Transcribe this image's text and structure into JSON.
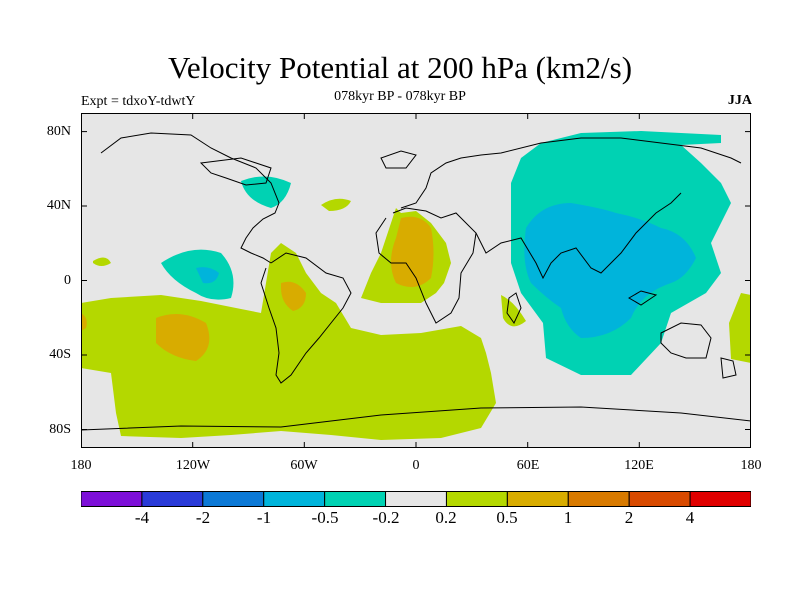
{
  "title": "Velocity Potential at 200 hPa (km2/s)",
  "subtitle": "078kyr BP - 078kyr BP",
  "experiment": "Expt = tdxoY-tdwtY",
  "season": "JJA",
  "map": {
    "projection": "cylindrical equidistant",
    "lon_range": [
      -180,
      180
    ],
    "lat_range": [
      -90,
      90
    ],
    "missing_color": "#e6e6e6",
    "lat_ticks": [
      {
        "label": "80N",
        "lat": 80
      },
      {
        "label": "40N",
        "lat": 40
      },
      {
        "label": "0",
        "lat": 0
      },
      {
        "label": "40S",
        "lat": -40
      },
      {
        "label": "80S",
        "lat": -80
      }
    ],
    "lon_ticks": [
      {
        "label": "180",
        "lon": -180
      },
      {
        "label": "120W",
        "lon": -120
      },
      {
        "label": "60W",
        "lon": -60
      },
      {
        "label": "0",
        "lon": 0
      },
      {
        "label": "60E",
        "lon": 60
      },
      {
        "label": "120E",
        "lon": 120
      },
      {
        "label": "180",
        "lon": 180
      }
    ]
  },
  "colorbar": {
    "colors": [
      "#7d0fd8",
      "#2a3bd8",
      "#0c79d6",
      "#00b4db",
      "#00d2b3",
      "#e6e6e6",
      "#b4d800",
      "#d8ac00",
      "#d87a00",
      "#d84a00",
      "#e00000"
    ],
    "labels": [
      "-4",
      "-2",
      "-1",
      "-0.5",
      "-0.2",
      "0.2",
      "0.5",
      "1",
      "2",
      "4"
    ]
  }
}
